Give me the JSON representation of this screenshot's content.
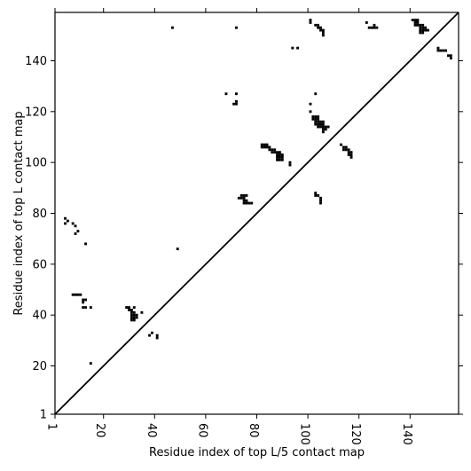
{
  "chart_data": {
    "type": "heatmap",
    "title": "",
    "xlabel": "Residue index of top L/5 contact map",
    "ylabel": "Residue index of top L contact map",
    "xlim": [
      1,
      159
    ],
    "ylim": [
      1,
      159
    ],
    "x_ticks": [
      1,
      20,
      40,
      60,
      80,
      100,
      120,
      140
    ],
    "y_ticks": [
      1,
      20,
      40,
      60,
      80,
      100,
      120,
      140
    ],
    "x_tick_labels": [
      "1",
      "20",
      "40",
      "60",
      "80",
      "100",
      "120",
      "140"
    ],
    "y_tick_labels": [
      "1",
      "20",
      "40",
      "60",
      "80",
      "100",
      "120",
      "140"
    ],
    "diagonal": true,
    "lower_triangle_contacts": [
      [
        5,
        78
      ],
      [
        5,
        76
      ],
      [
        6,
        77
      ],
      [
        8,
        76
      ],
      [
        9,
        75
      ],
      [
        9,
        72
      ],
      [
        10,
        73
      ],
      [
        13,
        68
      ],
      [
        8,
        48
      ],
      [
        9,
        48
      ],
      [
        10,
        48
      ],
      [
        11,
        48
      ],
      [
        12,
        46
      ],
      [
        12,
        45
      ],
      [
        13,
        46
      ],
      [
        12,
        43
      ],
      [
        13,
        43
      ],
      [
        15,
        43
      ],
      [
        15,
        21
      ],
      [
        29,
        43
      ],
      [
        30,
        43
      ],
      [
        30,
        42
      ],
      [
        31,
        42
      ],
      [
        32,
        43
      ],
      [
        31,
        41
      ],
      [
        32,
        41
      ],
      [
        31,
        40
      ],
      [
        32,
        40
      ],
      [
        33,
        40
      ],
      [
        31,
        39
      ],
      [
        32,
        39
      ],
      [
        33,
        39
      ],
      [
        31,
        38
      ],
      [
        32,
        38
      ],
      [
        35,
        41
      ],
      [
        38,
        32
      ],
      [
        39,
        33
      ],
      [
        41,
        32
      ],
      [
        41,
        31
      ],
      [
        49,
        66
      ],
      [
        74,
        87
      ],
      [
        75,
        87
      ],
      [
        76,
        87
      ],
      [
        73,
        86
      ],
      [
        74,
        86
      ],
      [
        75,
        86
      ],
      [
        75,
        85
      ],
      [
        76,
        85
      ],
      [
        75,
        84
      ],
      [
        76,
        84
      ],
      [
        77,
        84
      ],
      [
        78,
        84
      ],
      [
        82,
        107
      ],
      [
        83,
        107
      ],
      [
        84,
        107
      ],
      [
        82,
        106
      ],
      [
        83,
        106
      ],
      [
        84,
        106
      ],
      [
        85,
        106
      ],
      [
        85,
        105
      ],
      [
        86,
        105
      ],
      [
        87,
        105
      ],
      [
        86,
        104
      ],
      [
        87,
        104
      ],
      [
        88,
        104
      ],
      [
        89,
        104
      ],
      [
        88,
        103
      ],
      [
        89,
        103
      ],
      [
        90,
        103
      ],
      [
        88,
        102
      ],
      [
        89,
        102
      ],
      [
        90,
        102
      ],
      [
        88,
        101
      ],
      [
        89,
        101
      ],
      [
        90,
        101
      ],
      [
        93,
        100
      ],
      [
        93,
        99
      ],
      [
        103,
        88
      ],
      [
        103,
        87
      ],
      [
        104,
        87
      ],
      [
        105,
        86
      ],
      [
        105,
        85
      ],
      [
        105,
        84
      ],
      [
        114,
        106
      ],
      [
        115,
        106
      ],
      [
        114,
        105
      ],
      [
        115,
        105
      ],
      [
        116,
        105
      ],
      [
        116,
        104
      ],
      [
        117,
        104
      ],
      [
        116,
        103
      ],
      [
        117,
        103
      ],
      [
        117,
        102
      ],
      [
        113,
        107
      ]
    ],
    "upper_triangle_contacts": [
      [
        47,
        153
      ],
      [
        72,
        153
      ],
      [
        94,
        145
      ],
      [
        96,
        145
      ],
      [
        68,
        127
      ],
      [
        72,
        127
      ],
      [
        103,
        127
      ],
      [
        72,
        124
      ],
      [
        71,
        123
      ],
      [
        72,
        123
      ],
      [
        101,
        123
      ],
      [
        101,
        120
      ],
      [
        101,
        156
      ],
      [
        101,
        155
      ],
      [
        103,
        154
      ],
      [
        104,
        154
      ],
      [
        104,
        153
      ],
      [
        105,
        153
      ],
      [
        105,
        152
      ],
      [
        106,
        152
      ],
      [
        106,
        151
      ],
      [
        106,
        150
      ],
      [
        102,
        118
      ],
      [
        103,
        118
      ],
      [
        104,
        118
      ],
      [
        102,
        117
      ],
      [
        103,
        117
      ],
      [
        104,
        117
      ],
      [
        105,
        116
      ],
      [
        106,
        116
      ],
      [
        103,
        116
      ],
      [
        104,
        116
      ],
      [
        103,
        115
      ],
      [
        104,
        115
      ],
      [
        105,
        115
      ],
      [
        106,
        115
      ],
      [
        104,
        114
      ],
      [
        105,
        114
      ],
      [
        106,
        114
      ],
      [
        107,
        114
      ],
      [
        108,
        114
      ],
      [
        106,
        113
      ],
      [
        107,
        113
      ],
      [
        106,
        112
      ],
      [
        123,
        155
      ],
      [
        124,
        153
      ],
      [
        125,
        153
      ],
      [
        126,
        153
      ],
      [
        127,
        153
      ],
      [
        126,
        154
      ],
      [
        141,
        156
      ],
      [
        142,
        156
      ],
      [
        143,
        156
      ],
      [
        142,
        155
      ],
      [
        143,
        155
      ],
      [
        142,
        154
      ],
      [
        143,
        154
      ],
      [
        144,
        154
      ],
      [
        145,
        154
      ],
      [
        144,
        153
      ],
      [
        145,
        153
      ],
      [
        146,
        153
      ],
      [
        144,
        152
      ],
      [
        145,
        152
      ],
      [
        146,
        152
      ],
      [
        147,
        152
      ],
      [
        144,
        151
      ],
      [
        145,
        151
      ],
      [
        151,
        145
      ],
      [
        151,
        144
      ],
      [
        152,
        144
      ],
      [
        153,
        144
      ],
      [
        154,
        144
      ],
      [
        155,
        142
      ],
      [
        156,
        142
      ],
      [
        156,
        141
      ]
    ]
  }
}
